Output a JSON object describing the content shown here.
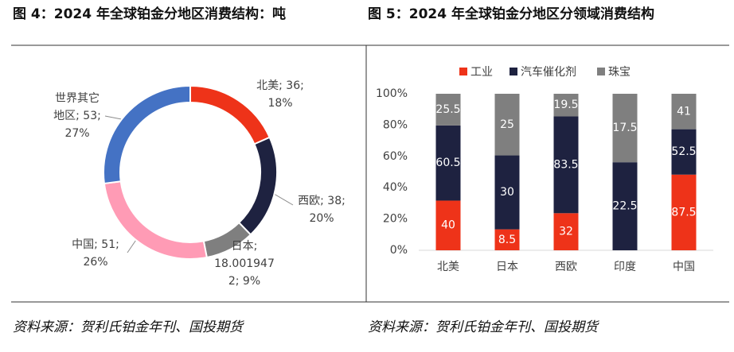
{
  "chart_data": [
    {
      "type": "donut",
      "title": "图 4：2024 年全球铂金分地区消费结构：吨",
      "values": [
        36,
        38,
        18.0019472,
        51,
        53
      ],
      "value_labels": [
        [
          "北美; 36;",
          "18%"
        ],
        [
          "西欧; 38;",
          "20%"
        ],
        [
          "日本;",
          "18.001947",
          "2; 9%"
        ],
        [
          "中国; 51;",
          "26%"
        ],
        [
          "世界其它",
          "地区; 53;",
          "27%"
        ]
      ],
      "colors": [
        "#ee3319",
        "#1e2240",
        "#7f7f7f",
        "#ff9bb5",
        "#4472c4"
      ],
      "source": "资料来源：贺利氏铂金年刊、国投期货"
    },
    {
      "type": "stacked_percent_bar",
      "title": "图 5：2024 年全球铂金分地区分领域消费结构",
      "categories": [
        "北美",
        "日本",
        "西欧",
        "印度",
        "中国"
      ],
      "series": [
        {
          "name": "工业",
          "color": "#ee3319",
          "values": [
            40,
            8.5,
            32,
            null,
            87.5
          ]
        },
        {
          "name": "汽车催化剂",
          "color": "#1e2240",
          "values": [
            60.5,
            30,
            83.5,
            22.5,
            52.5
          ]
        },
        {
          "name": "珠宝",
          "color": "#7f7f7f",
          "values": [
            25.5,
            25,
            19.5,
            17.5,
            41
          ]
        }
      ],
      "ylim": [
        0,
        100
      ],
      "yticks": [
        {
          "value": 0,
          "label": "0%"
        },
        {
          "value": 20,
          "label": "20%"
        },
        {
          "value": 40,
          "label": "40%"
        },
        {
          "value": 60,
          "label": "60%"
        },
        {
          "value": 80,
          "label": "80%"
        },
        {
          "value": 100,
          "label": "100%"
        }
      ],
      "legend": "top",
      "source": "资料来源：贺利氏铂金年刊、国投期货"
    }
  ]
}
